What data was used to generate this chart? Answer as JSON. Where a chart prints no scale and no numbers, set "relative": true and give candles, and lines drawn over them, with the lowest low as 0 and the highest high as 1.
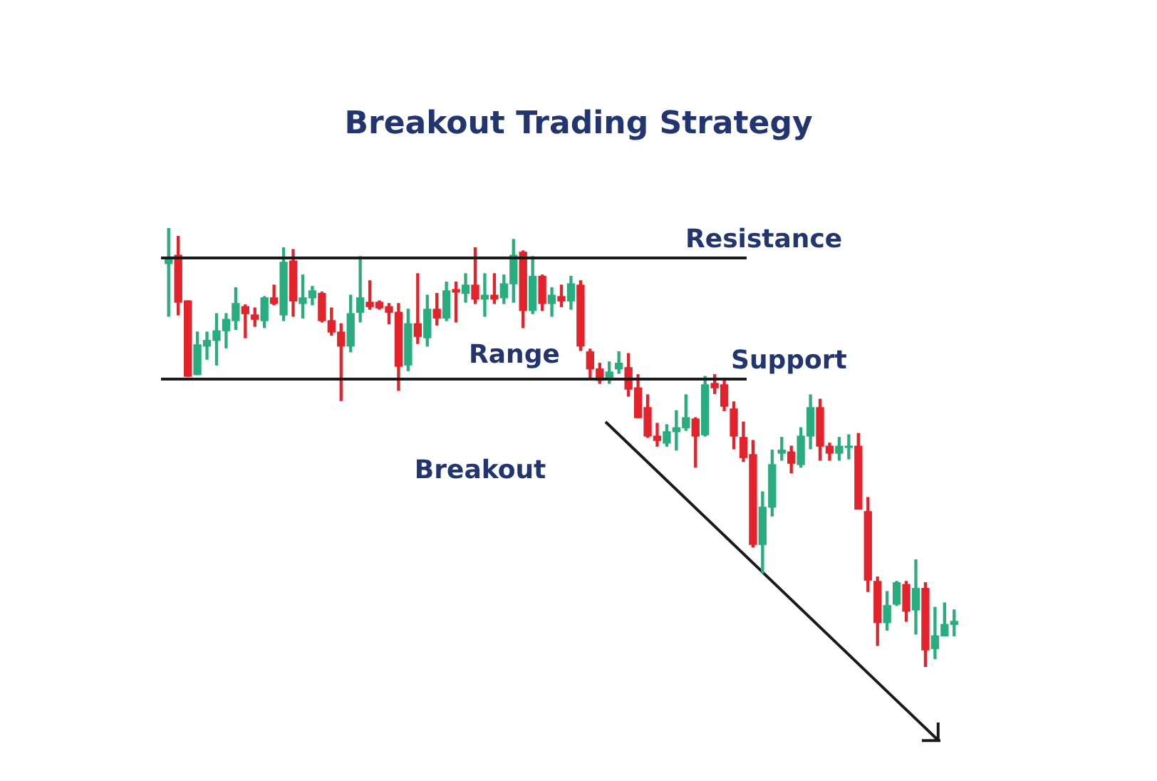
{
  "chart_data": {
    "type": "candlestick",
    "title": "Breakout Trading Strategy",
    "relative": true,
    "categories": [
      null,
      null,
      null,
      null,
      null,
      null,
      null,
      null,
      null,
      null,
      null,
      null,
      null,
      null,
      null,
      null,
      null,
      null,
      null,
      null,
      null,
      null,
      null,
      null,
      null,
      null,
      null,
      null,
      null,
      null,
      null,
      null,
      null,
      null,
      null,
      null,
      null,
      null,
      null,
      null,
      null,
      null,
      null,
      null,
      null,
      null,
      null,
      null,
      null,
      null,
      null,
      null,
      null,
      null,
      null,
      null,
      null,
      null,
      null,
      null,
      null,
      null,
      null,
      null,
      null,
      null,
      null,
      null,
      null,
      null,
      null,
      null,
      null,
      null,
      null,
      null,
      null,
      null,
      null,
      null,
      null,
      null,
      null
    ],
    "ohlc": [
      [
        0.919,
        1.0,
        0.799,
        0.932
      ],
      [
        0.938,
        0.981,
        0.802,
        0.831
      ],
      [
        0.834,
        0.834,
        0.662,
        0.662
      ],
      [
        0.666,
        0.763,
        0.666,
        0.734
      ],
      [
        0.731,
        0.763,
        0.701,
        0.744
      ],
      [
        0.744,
        0.805,
        0.688,
        0.766
      ],
      [
        0.766,
        0.805,
        0.727,
        0.792
      ],
      [
        0.789,
        0.864,
        0.769,
        0.828
      ],
      [
        0.821,
        0.825,
        0.75,
        0.805
      ],
      [
        0.802,
        0.818,
        0.776,
        0.792
      ],
      [
        0.789,
        0.844,
        0.773,
        0.841
      ],
      [
        0.841,
        0.87,
        0.825,
        0.828
      ],
      [
        0.802,
        0.955,
        0.789,
        0.922
      ],
      [
        0.925,
        0.951,
        0.799,
        0.834
      ],
      [
        0.828,
        0.893,
        0.795,
        0.841
      ],
      [
        0.841,
        0.867,
        0.825,
        0.857
      ],
      [
        0.851,
        0.854,
        0.786,
        0.789
      ],
      [
        0.789,
        0.818,
        0.756,
        0.763
      ],
      [
        0.763,
        0.782,
        0.607,
        0.731
      ],
      [
        0.731,
        0.847,
        0.718,
        0.805
      ],
      [
        0.808,
        0.935,
        0.786,
        0.841
      ],
      [
        0.831,
        0.88,
        0.815,
        0.821
      ],
      [
        0.831,
        0.834,
        0.815,
        0.818
      ],
      [
        0.821,
        0.828,
        0.782,
        0.808
      ],
      [
        0.808,
        0.828,
        0.63,
        0.685
      ],
      [
        0.688,
        0.815,
        0.675,
        0.782
      ],
      [
        0.782,
        0.896,
        0.737,
        0.753
      ],
      [
        0.75,
        0.847,
        0.731,
        0.815
      ],
      [
        0.815,
        0.851,
        0.779,
        0.795
      ],
      [
        0.795,
        0.877,
        0.789,
        0.857
      ],
      [
        0.86,
        0.877,
        0.786,
        0.854
      ],
      [
        0.851,
        0.896,
        0.831,
        0.87
      ],
      [
        0.87,
        0.955,
        0.828,
        0.838
      ],
      [
        0.838,
        0.896,
        0.799,
        0.847
      ],
      [
        0.847,
        0.896,
        0.828,
        0.838
      ],
      [
        0.841,
        0.893,
        0.828,
        0.873
      ],
      [
        0.873,
        0.974,
        0.831,
        0.938
      ],
      [
        0.945,
        0.948,
        0.773,
        0.812
      ],
      [
        0.812,
        0.935,
        0.805,
        0.89
      ],
      [
        0.89,
        0.893,
        0.812,
        0.828
      ],
      [
        0.828,
        0.864,
        0.799,
        0.847
      ],
      [
        0.844,
        0.87,
        0.821,
        0.834
      ],
      [
        0.834,
        0.89,
        0.815,
        0.873
      ],
      [
        0.87,
        0.88,
        0.721,
        0.731
      ],
      [
        0.718,
        0.724,
        0.659,
        0.679
      ],
      [
        0.679,
        0.692,
        0.646,
        0.653
      ],
      [
        0.656,
        0.695,
        0.646,
        0.672
      ],
      [
        0.679,
        0.718,
        0.669,
        0.692
      ],
      [
        0.682,
        0.714,
        0.617,
        0.633
      ],
      [
        0.636,
        0.666,
        0.568,
        0.568
      ],
      [
        0.591,
        0.62,
        0.523,
        0.526
      ],
      [
        0.526,
        0.555,
        0.503,
        0.516
      ],
      [
        0.51,
        0.552,
        0.503,
        0.536
      ],
      [
        0.536,
        0.584,
        0.494,
        0.545
      ],
      [
        0.545,
        0.62,
        0.539,
        0.568
      ],
      [
        0.565,
        0.568,
        0.455,
        0.526
      ],
      [
        0.529,
        0.662,
        0.526,
        0.643
      ],
      [
        0.646,
        0.666,
        0.623,
        0.636
      ],
      [
        0.643,
        0.653,
        0.584,
        0.594
      ],
      [
        0.588,
        0.604,
        0.497,
        0.526
      ],
      [
        0.523,
        0.558,
        0.468,
        0.477
      ],
      [
        0.484,
        0.516,
        0.273,
        0.279
      ],
      [
        0.279,
        0.399,
        0.214,
        0.364
      ],
      [
        0.364,
        0.494,
        0.344,
        0.461
      ],
      [
        0.487,
        0.523,
        0.471,
        0.494
      ],
      [
        0.49,
        0.503,
        0.442,
        0.464
      ],
      [
        0.461,
        0.545,
        0.455,
        0.526
      ],
      [
        0.526,
        0.62,
        0.497,
        0.591
      ],
      [
        0.591,
        0.61,
        0.471,
        0.503
      ],
      [
        0.503,
        0.51,
        0.471,
        0.487
      ],
      [
        0.487,
        0.523,
        0.471,
        0.503
      ],
      [
        0.5,
        0.529,
        0.474,
        0.503
      ],
      [
        0.503,
        0.532,
        0.36,
        0.36
      ],
      [
        0.354,
        0.386,
        0.172,
        0.198
      ],
      [
        0.195,
        0.205,
        0.049,
        0.101
      ],
      [
        0.101,
        0.172,
        0.084,
        0.14
      ],
      [
        0.143,
        0.195,
        0.14,
        0.192
      ],
      [
        0.188,
        0.195,
        0.104,
        0.127
      ],
      [
        0.13,
        0.244,
        0.075,
        0.179
      ],
      [
        0.179,
        0.192,
        0.0,
        0.039
      ],
      [
        0.042,
        0.136,
        0.019,
        0.071
      ],
      [
        0.071,
        0.146,
        0.071,
        0.097
      ],
      [
        0.097,
        0.13,
        0.071,
        0.104
      ]
    ],
    "colors": [
      "#2aad7e",
      "#e3232c",
      "#e3232c",
      "#2aad7e",
      "#2aad7e",
      "#2aad7e",
      "#2aad7e",
      "#2aad7e",
      "#e3232c",
      "#e3232c",
      "#2aad7e",
      "#e3232c",
      "#2aad7e",
      "#e3232c",
      "#2aad7e",
      "#2aad7e",
      "#e3232c",
      "#e3232c",
      "#e3232c",
      "#2aad7e",
      "#2aad7e",
      "#e3232c",
      "#e3232c",
      "#e3232c",
      "#e3232c",
      "#2aad7e",
      "#e3232c",
      "#2aad7e",
      "#e3232c",
      "#2aad7e",
      "#e3232c",
      "#2aad7e",
      "#e3232c",
      "#2aad7e",
      "#e3232c",
      "#2aad7e",
      "#2aad7e",
      "#e3232c",
      "#2aad7e",
      "#e3232c",
      "#2aad7e",
      "#e3232c",
      "#2aad7e",
      "#e3232c",
      "#e3232c",
      "#e3232c",
      "#2aad7e",
      "#2aad7e",
      "#e3232c",
      "#e3232c",
      "#e3232c",
      "#e3232c",
      "#2aad7e",
      "#2aad7e",
      "#2aad7e",
      "#e3232c",
      "#2aad7e",
      "#e3232c",
      "#e3232c",
      "#e3232c",
      "#e3232c",
      "#e3232c",
      "#2aad7e",
      "#2aad7e",
      "#2aad7e",
      "#e3232c",
      "#2aad7e",
      "#2aad7e",
      "#e3232c",
      "#e3232c",
      "#2aad7e",
      "#2aad7e",
      "#e3232c",
      "#e3232c",
      "#e3232c",
      "#2aad7e",
      "#2aad7e",
      "#e3232c",
      "#2aad7e",
      "#e3232c",
      "#2aad7e",
      "#2aad7e",
      "#2aad7e"
    ],
    "ref_lines": [
      {
        "axis": "y",
        "value": 0.932,
        "label": "Resistance",
        "color": "#1a1a1a"
      },
      {
        "axis": "y",
        "value": 0.656,
        "label": "Support",
        "color": "#1a1a1a"
      }
    ],
    "annotations": [
      "Range",
      "Breakout"
    ]
  }
}
